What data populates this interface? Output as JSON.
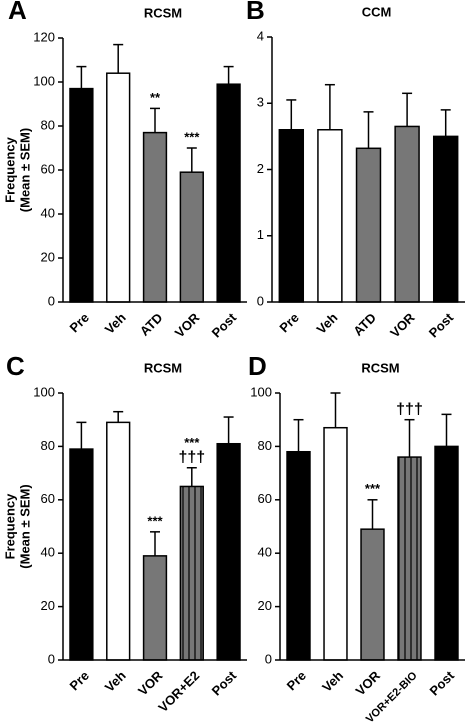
{
  "chart_data": [
    {
      "type": "bar",
      "panel": "A",
      "title": "RCSM",
      "ylabel": [
        "Frequency",
        "(Mean ± SEM)"
      ],
      "categories": [
        "Pre",
        "Veh",
        "ATD",
        "VOR",
        "Post"
      ],
      "values": [
        97,
        104,
        77,
        59,
        99
      ],
      "errors": [
        10,
        13,
        11,
        11,
        8
      ],
      "colors": [
        "#000000",
        "#ffffff",
        "#777777",
        "#777777",
        "#000000"
      ],
      "hatch": [
        false,
        false,
        false,
        false,
        false
      ],
      "significance": [
        null,
        null,
        "**",
        "***",
        null
      ],
      "daggers": [
        null,
        null,
        null,
        null,
        null
      ],
      "ylim": [
        0,
        120
      ],
      "yticks": [
        0,
        20,
        40,
        60,
        80,
        100,
        120
      ]
    },
    {
      "type": "bar",
      "panel": "B",
      "title": "CCM",
      "categories": [
        "Pre",
        "Veh",
        "ATD",
        "VOR",
        "Post"
      ],
      "values": [
        2.6,
        2.6,
        2.32,
        2.65,
        2.5
      ],
      "errors": [
        0.45,
        0.68,
        0.55,
        0.5,
        0.4
      ],
      "colors": [
        "#000000",
        "#ffffff",
        "#777777",
        "#777777",
        "#000000"
      ],
      "hatch": [
        false,
        false,
        false,
        false,
        false
      ],
      "significance": [
        null,
        null,
        null,
        null,
        null
      ],
      "daggers": [
        null,
        null,
        null,
        null,
        null
      ],
      "ylim": [
        0,
        4
      ],
      "yticks": [
        0,
        1,
        2,
        3,
        4
      ]
    },
    {
      "type": "bar",
      "panel": "C",
      "title": "RCSM",
      "ylabel": [
        "Frequency",
        "(Mean ± SEM)"
      ],
      "categories": [
        "Pre",
        "Veh",
        "VOR",
        "VOR+E2",
        "Post"
      ],
      "values": [
        79,
        89,
        39,
        65,
        81
      ],
      "errors": [
        10,
        4,
        9,
        7,
        10
      ],
      "colors": [
        "#000000",
        "#ffffff",
        "#777777",
        "#777777",
        "#000000"
      ],
      "hatch": [
        false,
        false,
        false,
        true,
        false
      ],
      "significance": [
        null,
        null,
        "***",
        "***",
        null
      ],
      "daggers": [
        null,
        null,
        null,
        "†††",
        null
      ],
      "ylim": [
        0,
        100
      ],
      "yticks": [
        0,
        20,
        40,
        60,
        80,
        100
      ]
    },
    {
      "type": "bar",
      "panel": "D",
      "title": "RCSM",
      "categories": [
        "Pre",
        "Veh",
        "VOR",
        "VOR+E2-BIO",
        "Post"
      ],
      "values": [
        78,
        87,
        49,
        76,
        80
      ],
      "errors": [
        12,
        13,
        11,
        14,
        12
      ],
      "colors": [
        "#000000",
        "#ffffff",
        "#777777",
        "#777777",
        "#000000"
      ],
      "hatch": [
        false,
        false,
        false,
        true,
        false
      ],
      "significance": [
        null,
        null,
        "***",
        null,
        null
      ],
      "daggers": [
        null,
        null,
        null,
        "†††",
        null
      ],
      "ylim": [
        0,
        100
      ],
      "yticks": [
        0,
        20,
        40,
        60,
        80,
        100
      ]
    }
  ]
}
